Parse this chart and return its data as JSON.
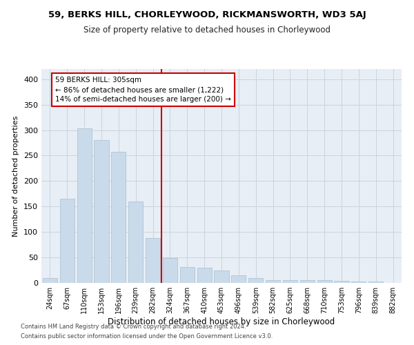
{
  "title1": "59, BERKS HILL, CHORLEYWOOD, RICKMANSWORTH, WD3 5AJ",
  "title2": "Size of property relative to detached houses in Chorleywood",
  "xlabel": "Distribution of detached houses by size in Chorleywood",
  "ylabel": "Number of detached properties",
  "categories": [
    "24sqm",
    "67sqm",
    "110sqm",
    "153sqm",
    "196sqm",
    "239sqm",
    "282sqm",
    "324sqm",
    "367sqm",
    "410sqm",
    "453sqm",
    "496sqm",
    "539sqm",
    "582sqm",
    "625sqm",
    "668sqm",
    "710sqm",
    "753sqm",
    "796sqm",
    "839sqm",
    "882sqm"
  ],
  "values": [
    10,
    165,
    303,
    280,
    258,
    160,
    88,
    49,
    31,
    30,
    25,
    15,
    9,
    6,
    5,
    5,
    5,
    4,
    3,
    3,
    0
  ],
  "bar_color": "#c9daea",
  "bar_edge_color": "#aabfcf",
  "marker_label": "59 BERKS HILL: 305sqm",
  "annotation_line1": "← 86% of detached houses are smaller (1,222)",
  "annotation_line2": "14% of semi-detached houses are larger (200) →",
  "annotation_box_color": "#ffffff",
  "annotation_box_edge": "#cc0000",
  "vline_color": "#cc0000",
  "ylim": [
    0,
    420
  ],
  "yticks": [
    0,
    50,
    100,
    150,
    200,
    250,
    300,
    350,
    400
  ],
  "grid_color": "#c8d4e0",
  "bg_color": "#e8eef5",
  "footer1": "Contains HM Land Registry data © Crown copyright and database right 2024.",
  "footer2": "Contains public sector information licensed under the Open Government Licence v3.0."
}
